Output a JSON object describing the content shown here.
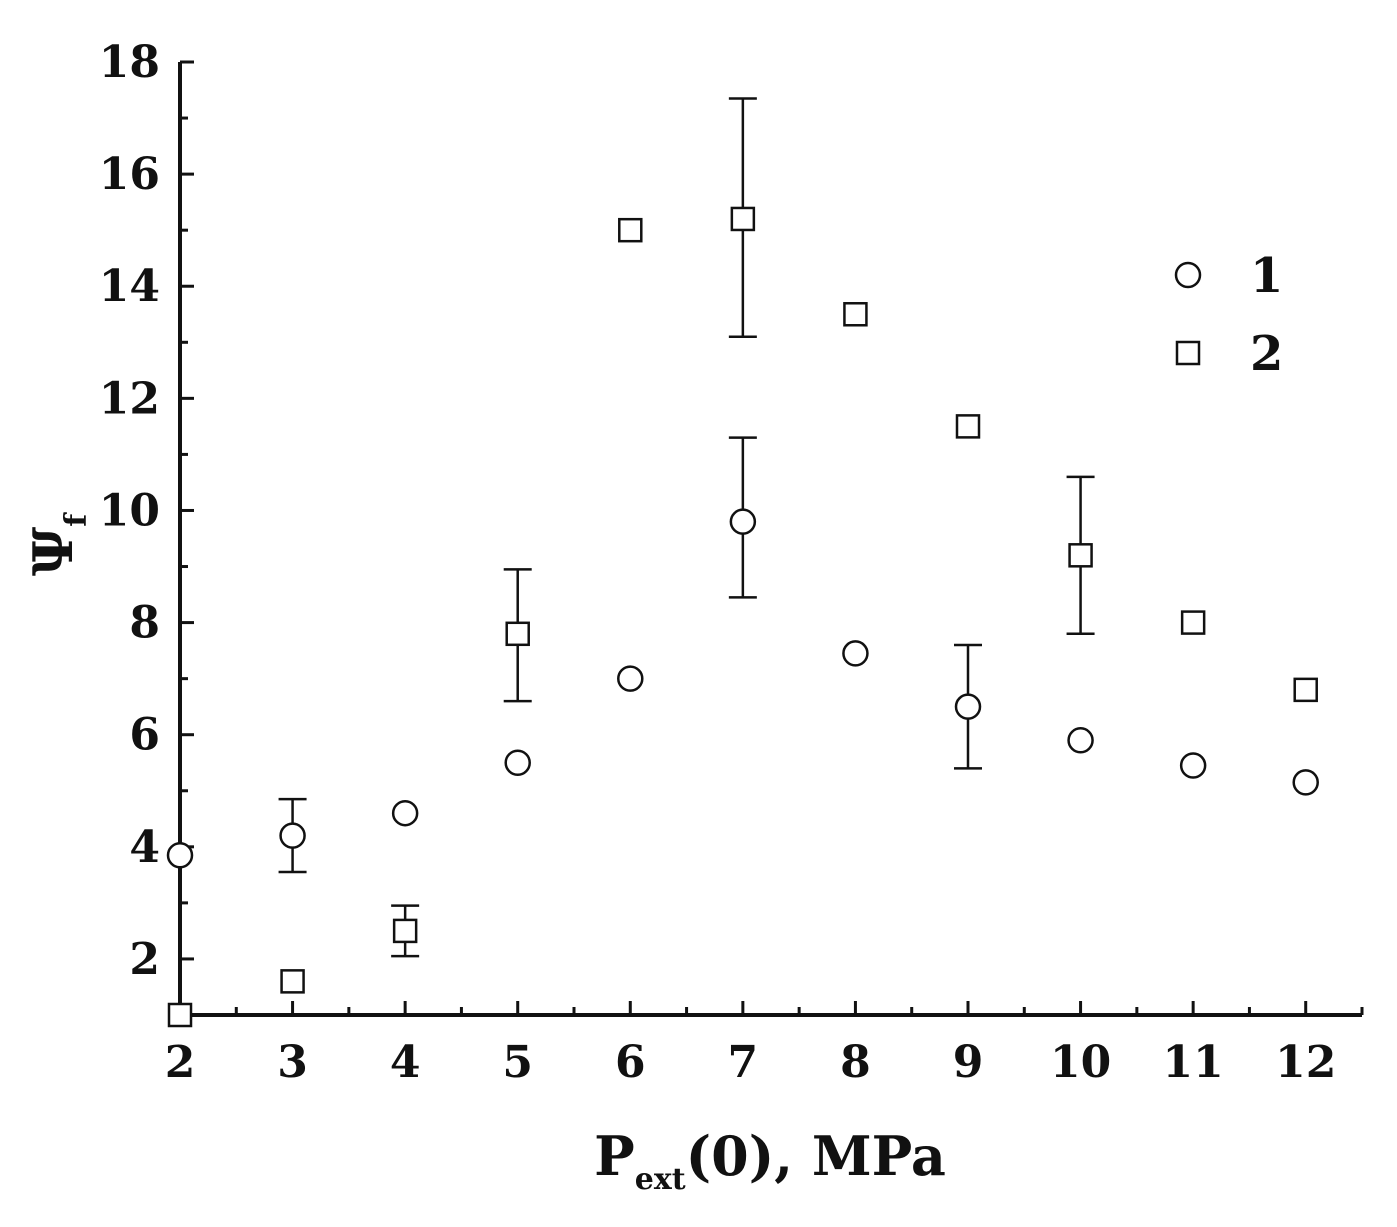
{
  "chart_data": {
    "type": "scatter",
    "xlabel": {
      "main": "P",
      "sub": "ext",
      "rest": "(0), MPa"
    },
    "ylabel": {
      "main": "Ψ",
      "sub": "f"
    },
    "xlim": [
      2,
      12.5
    ],
    "ylim": [
      1,
      18
    ],
    "xticks": [
      2,
      3,
      4,
      5,
      6,
      7,
      8,
      9,
      10,
      11,
      12
    ],
    "yticks": [
      2,
      4,
      6,
      8,
      10,
      12,
      14,
      16,
      18
    ],
    "grid": false,
    "legend_position": "top-right",
    "series": [
      {
        "name": "1",
        "marker": "circle",
        "points": [
          {
            "x": 2,
            "y": 3.85
          },
          {
            "x": 3,
            "y": 4.2,
            "err_low": 3.55,
            "err_high": 4.85
          },
          {
            "x": 4,
            "y": 4.6
          },
          {
            "x": 5,
            "y": 5.5
          },
          {
            "x": 6,
            "y": 7.0
          },
          {
            "x": 7,
            "y": 9.8,
            "err_low": 8.45,
            "err_high": 11.3
          },
          {
            "x": 8,
            "y": 7.45
          },
          {
            "x": 9,
            "y": 6.5,
            "err_low": 5.4,
            "err_high": 7.6
          },
          {
            "x": 10,
            "y": 5.9
          },
          {
            "x": 11,
            "y": 5.45
          },
          {
            "x": 12,
            "y": 5.15
          }
        ]
      },
      {
        "name": "2",
        "marker": "square",
        "points": [
          {
            "x": 2,
            "y": 1.0
          },
          {
            "x": 3,
            "y": 1.6
          },
          {
            "x": 4,
            "y": 2.5,
            "err_low": 2.05,
            "err_high": 2.95
          },
          {
            "x": 5,
            "y": 7.8,
            "err_low": 6.6,
            "err_high": 8.95
          },
          {
            "x": 6,
            "y": 15.0
          },
          {
            "x": 7,
            "y": 15.2,
            "err_low": 13.1,
            "err_high": 17.35
          },
          {
            "x": 8,
            "y": 13.5
          },
          {
            "x": 9,
            "y": 11.5
          },
          {
            "x": 10,
            "y": 9.2,
            "err_low": 7.8,
            "err_high": 10.6
          },
          {
            "x": 11,
            "y": 8.0
          },
          {
            "x": 12,
            "y": 6.8
          }
        ]
      }
    ]
  }
}
